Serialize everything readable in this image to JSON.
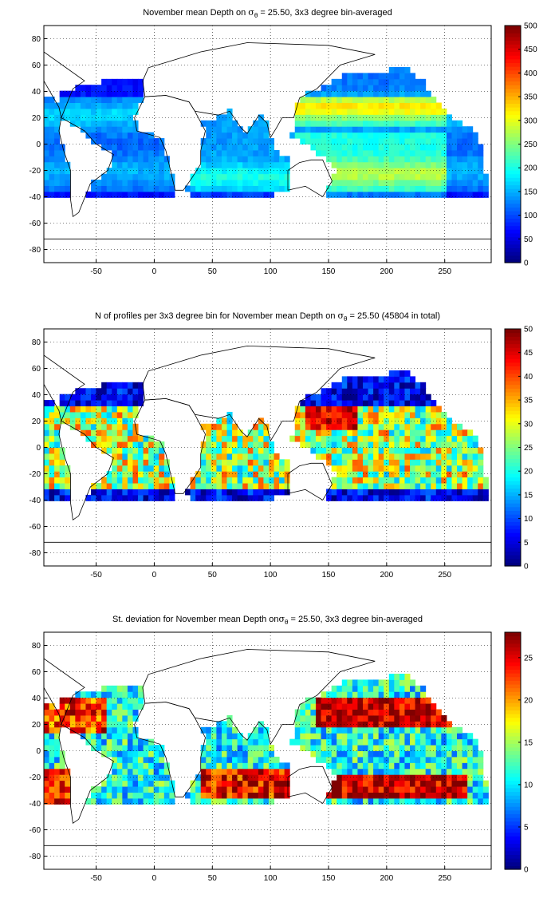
{
  "panels": [
    {
      "title_main": "November mean Depth on ",
      "title_sub": "θ",
      "title_rest": " = 25.50, 3x3 degree bin-averaged",
      "title_sigma": "σ",
      "colorbar": {
        "min": 0,
        "max": 500,
        "ticks": [
          0,
          50,
          100,
          150,
          200,
          250,
          300,
          350,
          400,
          450,
          500
        ]
      },
      "field": "depth"
    },
    {
      "title_main": "N of profiles per 3x3 degree bin for November mean Depth on ",
      "title_sub": "θ",
      "title_rest": " = 25.50 (45804 in total)",
      "title_sigma": "σ",
      "colorbar": {
        "min": 0,
        "max": 50,
        "ticks": [
          0,
          5,
          10,
          15,
          20,
          25,
          30,
          35,
          40,
          45,
          50
        ]
      },
      "field": "count"
    },
    {
      "title_main": "St. deviation for November mean Depth on",
      "title_sub": "θ",
      "title_rest": " = 25.50, 3x3 degree bin-averaged",
      "title_sigma": "σ",
      "colorbar": {
        "min": 0,
        "max": 28,
        "ticks": [
          0,
          5,
          10,
          15,
          20,
          25
        ]
      },
      "field": "std"
    }
  ],
  "axes": {
    "x_ticks": [
      -50,
      0,
      50,
      100,
      150,
      200,
      250
    ],
    "y_ticks": [
      -80,
      -60,
      -40,
      -20,
      0,
      20,
      40,
      60,
      80
    ],
    "x_range": [
      -95,
      290
    ],
    "y_range": [
      -90,
      90
    ],
    "grid": true
  },
  "colormap": "jet"
}
